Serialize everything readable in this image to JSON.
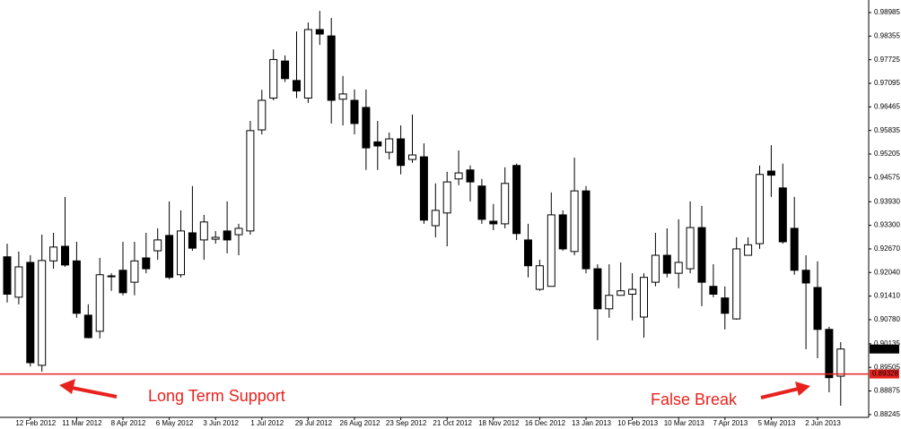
{
  "chart_data": {
    "type": "candlestick",
    "ylim": [
      0.8817,
      0.9932
    ],
    "yticks": [
      0.98985,
      0.98355,
      0.97725,
      0.97095,
      0.96465,
      0.95835,
      0.95205,
      0.94575,
      {
        "value": 0.9393,
        "label": "0.93930"
      },
      {
        "value": 0.933,
        "label": "0.93300"
      },
      {
        "value": 0.9267,
        "label": "0.92670"
      },
      {
        "value": 0.9204,
        "label": "0.92040"
      },
      {
        "value": 0.9141,
        "label": "0.91410"
      },
      {
        "value": 0.9078,
        "label": "0.90780"
      },
      0.90135,
      0.89505,
      0.88875,
      0.88245
    ],
    "up_color": "#ffffff",
    "down_color": "#000000",
    "categories": [
      null,
      null,
      "12 Feb 2012",
      null,
      null,
      null,
      "11 Mar 2012",
      null,
      null,
      null,
      "8 Apr 2012",
      null,
      null,
      null,
      "6 May 2012",
      null,
      null,
      null,
      "3 Jun 2012",
      null,
      null,
      null,
      "1 Jul 2012",
      null,
      null,
      null,
      "29 Jul 2012",
      null,
      null,
      null,
      "26 Aug 2012",
      null,
      null,
      null,
      "23 Sep 2012",
      null,
      null,
      null,
      "21 Oct 2012",
      null,
      null,
      null,
      "18 Nov 2012",
      null,
      null,
      null,
      "16 Dec 2012",
      null,
      null,
      null,
      "13 Jan 2013",
      null,
      null,
      null,
      "10 Feb 2013",
      null,
      null,
      null,
      "10 Mar 2013",
      null,
      null,
      null,
      "7 Apr 2013",
      null,
      null,
      null,
      "5 May 2013",
      null,
      null,
      null,
      "2 Jun 2013",
      null,
      null
    ],
    "open": [
      0.9246,
      0.9138,
      0.9231,
      0.8956,
      0.9235,
      0.9274,
      0.9235,
      0.909,
      0.9047,
      0.9193,
      0.921,
      0.9178,
      0.9243,
      0.9262,
      0.9303,
      0.9198,
      0.931,
      0.9291,
      0.9293,
      0.9315,
      0.9305,
      0.9315,
      0.9585,
      0.967,
      0.9769,
      0.9717,
      0.967,
      0.9853,
      0.9836,
      0.9667,
      0.9664,
      0.9645,
      0.9553,
      0.9525,
      0.9561,
      0.9506,
      0.9513,
      0.9329,
      0.9363,
      0.9454,
      0.9478,
      0.9435,
      0.9341,
      0.9334,
      0.949,
      0.9291,
      0.9159,
      0.9167,
      0.9358,
      0.926,
      0.9422,
      0.9214,
      0.9107,
      0.9143,
      0.9146,
      0.9085,
      0.9178,
      0.925,
      0.9202,
      0.9214,
      0.9324,
      0.9167,
      0.9136,
      0.908,
      0.925,
      0.9281,
      0.9475,
      0.943,
      0.9322,
      0.921,
      0.9164,
      0.9052,
      0.8927
    ],
    "high": [
      0.9281,
      0.926,
      0.925,
      0.9305,
      0.931,
      0.9406,
      0.9286,
      0.9119,
      0.9243,
      0.9202,
      0.9286,
      0.9286,
      0.931,
      0.9322,
      0.9394,
      0.937,
      0.9435,
      0.9358,
      0.9315,
      0.9394,
      0.9334,
      0.9609,
      0.9692,
      0.98,
      0.9784,
      0.9848,
      0.9872,
      0.9903,
      0.9884,
      0.9729,
      0.9693,
      0.9693,
      0.9609,
      0.9578,
      0.9597,
      0.9626,
      0.9549,
      0.9442,
      0.9473,
      0.953,
      0.949,
      0.9454,
      0.9387,
      0.9485,
      0.9495,
      0.9334,
      0.9238,
      0.9418,
      0.937,
      0.9511,
      0.9435,
      0.9226,
      0.9226,
      0.9231,
      0.9202,
      0.9202,
      0.931,
      0.9322,
      0.9346,
      0.9394,
      0.9382,
      0.9226,
      0.9167,
      0.9298,
      0.9298,
      0.949,
      0.9544,
      0.9495,
      0.9406,
      0.925,
      0.9234,
      0.9059,
      0.9018
    ],
    "low": [
      0.9124,
      0.9119,
      0.8953,
      0.8939,
      0.9214,
      0.9219,
      0.9083,
      0.9028,
      0.9028,
      0.9155,
      0.9143,
      0.9143,
      0.9202,
      0.9238,
      0.9186,
      0.9191,
      0.9262,
      0.9238,
      0.9281,
      0.9255,
      0.925,
      0.9305,
      0.9573,
      0.9664,
      0.9713,
      0.967,
      0.9657,
      0.9812,
      0.9602,
      0.9597,
      0.9573,
      0.9478,
      0.9478,
      0.9506,
      0.9466,
      0.9497,
      0.9334,
      0.9298,
      0.9274,
      0.9437,
      0.9394,
      0.9334,
      0.9317,
      0.9322,
      0.9291,
      0.9191,
      0.9155,
      0.9167,
      0.9262,
      0.925,
      0.9202,
      0.9023,
      0.9083,
      0.9143,
      0.9076,
      0.903,
      0.9167,
      0.9191,
      0.9162,
      0.9202,
      0.9114,
      0.9138,
      0.9052,
      0.9078,
      0.925,
      0.9267,
      0.9406,
      0.9281,
      0.9198,
      0.8999,
      0.8975,
      0.8884,
      0.8848
    ],
    "close": [
      0.9146,
      0.9219,
      0.8963,
      0.9236,
      0.9272,
      0.9224,
      0.9095,
      0.903,
      0.9198,
      0.9195,
      0.915,
      0.9235,
      0.9214,
      0.9291,
      0.9191,
      0.9315,
      0.9269,
      0.9339,
      0.9298,
      0.9291,
      0.9322,
      0.9583,
      0.9664,
      0.9773,
      0.9722,
      0.9689,
      0.9853,
      0.9841,
      0.9664,
      0.9681,
      0.9602,
      0.9537,
      0.9542,
      0.9561,
      0.949,
      0.9518,
      0.9344,
      0.937,
      0.9446,
      0.947,
      0.9446,
      0.9346,
      0.9334,
      0.9442,
      0.9308,
      0.9222,
      0.9222,
      0.9358,
      0.9267,
      0.9422,
      0.9214,
      0.9107,
      0.9143,
      0.9155,
      0.9159,
      0.9191,
      0.925,
      0.9202,
      0.9231,
      0.9324,
      0.9178,
      0.9146,
      0.9095,
      0.9267,
      0.9278,
      0.9466,
      0.9464,
      0.9286,
      0.921,
      0.9176,
      0.9052,
      0.8923,
      0.89996
    ],
    "support_level": 0.89328,
    "annotations": [
      "Long Term Support",
      "False Break"
    ]
  }
}
